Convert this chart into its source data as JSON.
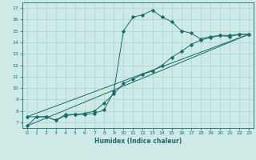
{
  "title": "",
  "xlabel": "Humidex (Indice chaleur)",
  "bg_color": "#ceeae6",
  "line_color": "#1a6b6b",
  "grid_color": "#b0d8d4",
  "xlim": [
    -0.5,
    23.5
  ],
  "ylim": [
    6.5,
    17.5
  ],
  "xticks": [
    0,
    1,
    2,
    3,
    4,
    5,
    6,
    7,
    8,
    9,
    10,
    11,
    12,
    13,
    14,
    15,
    16,
    17,
    18,
    19,
    20,
    21,
    22,
    23
  ],
  "yticks": [
    7,
    8,
    9,
    10,
    11,
    12,
    13,
    14,
    15,
    16,
    17
  ],
  "series1_x": [
    0,
    1,
    2,
    3,
    4,
    5,
    6,
    7,
    8,
    9,
    10,
    11,
    12,
    13,
    14,
    15,
    16,
    17,
    18,
    19,
    20,
    21,
    22,
    23
  ],
  "series1_y": [
    6.7,
    7.5,
    7.5,
    7.2,
    7.6,
    7.7,
    7.7,
    7.8,
    8.1,
    9.7,
    15.0,
    16.2,
    16.4,
    16.8,
    16.2,
    15.8,
    15.0,
    14.8,
    14.3,
    14.5,
    14.6,
    14.5,
    14.7,
    14.7
  ],
  "series2_x": [
    0,
    2,
    3,
    4,
    5,
    6,
    7,
    8,
    9,
    10,
    11,
    12,
    13,
    14,
    15,
    16,
    17,
    18,
    19,
    20,
    21,
    22,
    23
  ],
  "series2_y": [
    7.5,
    7.5,
    7.2,
    7.7,
    7.7,
    7.8,
    8.0,
    8.7,
    9.5,
    10.4,
    10.8,
    11.2,
    11.5,
    12.0,
    12.7,
    13.2,
    13.8,
    14.2,
    14.4,
    14.6,
    14.6,
    14.7,
    14.7
  ],
  "series3_x": [
    0,
    23
  ],
  "series3_y": [
    7.5,
    14.7
  ],
  "series4_x": [
    0,
    23
  ],
  "series4_y": [
    6.7,
    14.7
  ],
  "marker": "D",
  "markersize": 1.8,
  "linewidth": 0.7
}
